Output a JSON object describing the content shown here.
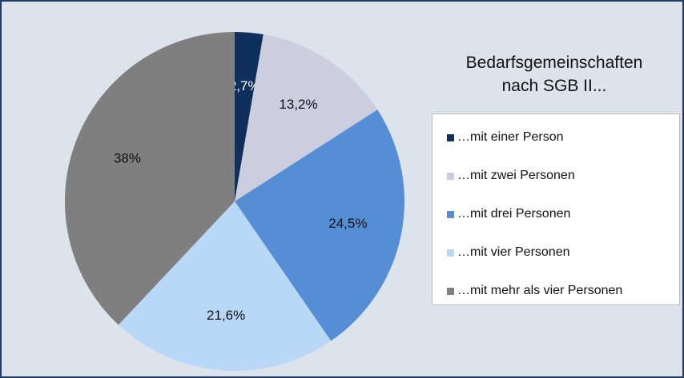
{
  "chart_data": {
    "type": "pie",
    "title": "Bedarfsgemeinschaften nach SGB II...",
    "categories": [
      "…mit einer Person",
      "…mit zwei Personen",
      "…mit drei Personen",
      "…mit vier Personen",
      "…mit mehr als vier Personen"
    ],
    "values": [
      2.7,
      13.2,
      24.5,
      21.6,
      38
    ],
    "value_labels": [
      "2,7%",
      "13,2%",
      "24,5%",
      "21,6%",
      "38%"
    ],
    "colors": [
      "#0f2f5c",
      "#cdcde0",
      "#558ed5",
      "#b9d8f8",
      "#7f7f7f"
    ],
    "legend": "right"
  }
}
